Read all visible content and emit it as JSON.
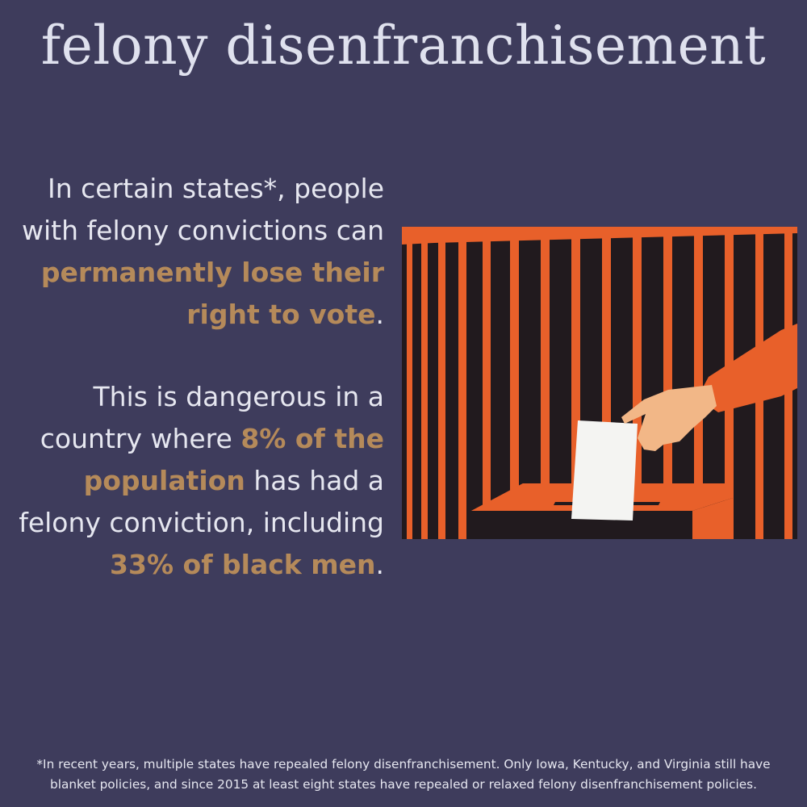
{
  "title": "felony disenfranchisement",
  "para1": {
    "line1": "In certain states*, people",
    "line2": "with felony convictions can",
    "highlight1": "permanently lose their",
    "highlight2": "right to vote",
    "end": "."
  },
  "para2": {
    "line1": "This is dangerous in a",
    "line2_pre": "country where ",
    "highlight1": "8% of the",
    "highlight2": "population",
    "line3_post": " has had a",
    "line4": "felony conviction, including",
    "highlight3": "33% of black men",
    "end": "."
  },
  "footnote": {
    "line1": "*In recent years, multiple states have repealed felony disenfranchisement. Only Iowa, Kentucky, and Virginia still have",
    "line2": "blanket policies, and since 2015 at least eight states have repealed or relaxed felony disenfranchisement policies."
  },
  "colors": {
    "background": "#3e3c5c",
    "text": "#e6e7f0",
    "highlight": "#b58a5a",
    "bars": "#e8602a",
    "dark": "#211a1e",
    "skin": "#f2b787",
    "ballot": "#f4f4f2"
  },
  "illustration": {
    "name": "hand-casting-ballot-behind-bars-illustration"
  }
}
